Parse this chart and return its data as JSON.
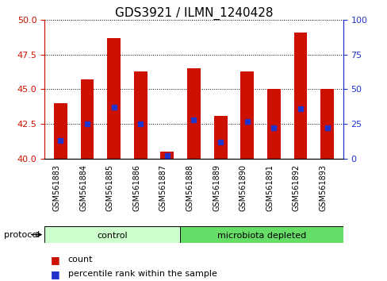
{
  "title": "GDS3921 / ILMN_1240428",
  "samples": [
    "GSM561883",
    "GSM561884",
    "GSM561885",
    "GSM561886",
    "GSM561887",
    "GSM561888",
    "GSM561889",
    "GSM561890",
    "GSM561891",
    "GSM561892",
    "GSM561893"
  ],
  "bar_tops": [
    44.0,
    45.7,
    48.7,
    46.3,
    40.5,
    46.5,
    43.1,
    46.3,
    45.0,
    49.1,
    45.0
  ],
  "bar_bottom": 40.0,
  "percentile_values": [
    13.0,
    25.0,
    37.0,
    25.0,
    2.5,
    28.0,
    12.0,
    27.0,
    22.0,
    36.0,
    22.0
  ],
  "ylim": [
    40,
    50
  ],
  "y2lim": [
    0,
    100
  ],
  "yticks": [
    40,
    42.5,
    45,
    47.5,
    50
  ],
  "y2ticks": [
    0,
    25,
    50,
    75,
    100
  ],
  "bar_color": "#cc1100",
  "percentile_color": "#2233cc",
  "groups": [
    {
      "label": "control",
      "start": 0,
      "end": 5,
      "color": "#ccffcc"
    },
    {
      "label": "microbiota depleted",
      "start": 5,
      "end": 11,
      "color": "#66dd66"
    }
  ],
  "protocol_label": "protocol",
  "legend": [
    {
      "label": "count",
      "color": "#cc1100"
    },
    {
      "label": "percentile rank within the sample",
      "color": "#2233cc"
    }
  ],
  "tick_color_left": "#cc1100",
  "tick_color_right": "#2233cc",
  "title_fontsize": 11,
  "axis_fontsize": 8,
  "sample_fontsize": 7
}
